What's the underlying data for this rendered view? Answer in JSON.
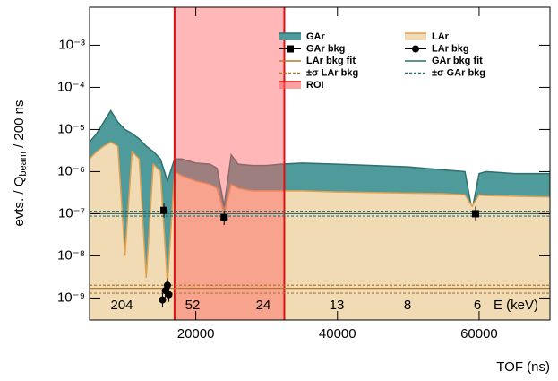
{
  "chart_data": {
    "type": "area",
    "y_label_parts": [
      "evts. / Q",
      "beam",
      " / 200 ns"
    ],
    "x_label": "TOF (ns)",
    "xlim": [
      5000,
      70000
    ],
    "xticks": [
      20000,
      40000,
      60000
    ],
    "ylim": [
      3e-10,
      0.008
    ],
    "log_y": true,
    "yticks": [
      {
        "value": 1e-09,
        "label": "10⁻⁹"
      },
      {
        "value": 1e-08,
        "label": "10⁻⁸"
      },
      {
        "value": 1e-07,
        "label": "10⁻⁷"
      },
      {
        "value": 1e-06,
        "label": "10⁻⁶"
      },
      {
        "value": 1e-05,
        "label": "10⁻⁵"
      },
      {
        "value": 0.0001,
        "label": "10⁻⁴"
      },
      {
        "value": 0.001,
        "label": "10⁻³"
      }
    ],
    "x": [
      5000,
      6000,
      7000,
      8000,
      9000,
      10000,
      11000,
      12000,
      13000,
      14000,
      15000,
      16000,
      17000,
      18000,
      20000,
      22000,
      23000,
      24000,
      25000,
      26000,
      28000,
      30000,
      32000,
      35000,
      40000,
      45000,
      50000,
      55000,
      58000,
      59000,
      60000,
      61000,
      65000,
      70000
    ],
    "series": [
      {
        "name": "GAr",
        "color": "#4f9a9a",
        "line": "#2f6f6f",
        "values": [
          5e-06,
          8e-06,
          1.5e-05,
          2.8e-05,
          1.5e-05,
          1e-05,
          8e-06,
          6e-06,
          4e-06,
          3e-06,
          2e-06,
          6e-07,
          2e-06,
          2e-06,
          1.6e-06,
          1.5e-06,
          1.2e-06,
          1.5e-07,
          2.5e-06,
          1.5e-06,
          1.4e-06,
          1.4e-06,
          1.5e-06,
          1.6e-06,
          1.5e-06,
          1.4e-06,
          1.3e-06,
          1.1e-06,
          1e-06,
          1.2e-07,
          9e-07,
          1e-06,
          9e-07,
          9e-07
        ]
      },
      {
        "name": "LAr",
        "color": "#f0dbb4",
        "line": "#e0a050",
        "values": [
          2e-06,
          3e-06,
          4e-06,
          5e-06,
          4e-06,
          1e-08,
          3e-06,
          2e-06,
          3e-09,
          1.5e-06,
          1e-06,
          2e-09,
          1e-06,
          8e-07,
          6e-07,
          5e-07,
          4e-07,
          1e-07,
          5e-07,
          4e-07,
          3.5e-07,
          3.5e-07,
          3.5e-07,
          3.5e-07,
          3.3e-07,
          3.2e-07,
          3.1e-07,
          3e-07,
          2.8e-07,
          1.5e-07,
          2.8e-07,
          2.7e-07,
          2.6e-07,
          2.5e-07
        ]
      }
    ],
    "markers": [
      {
        "name": "GAr bkg",
        "shape": "square",
        "color": "#000000",
        "x": [
          15500,
          24000,
          59500
        ],
        "values": [
          1.2e-07,
          8e-08,
          1e-07
        ]
      },
      {
        "name": "LAr bkg",
        "shape": "circle",
        "color": "#000000",
        "x": [
          15300,
          15700,
          16000,
          16200
        ],
        "values": [
          9e-10,
          1.5e-09,
          2e-09,
          1.2e-09
        ]
      }
    ],
    "levels": [
      {
        "name": "GAr bkg fit",
        "color": "#2f6f6f",
        "dashed": false,
        "values": [
          1e-07
        ]
      },
      {
        "name": "LAr bkg fit",
        "color": "#b07a30",
        "dashed": false,
        "values": [
          1.7e-09
        ]
      },
      {
        "name": "±σ GAr bkg",
        "color": "#2f6f6f",
        "dashed": true,
        "values": [
          1.15e-07,
          8.8e-08
        ]
      },
      {
        "name": "±σ LAr bkg",
        "color": "#b07a30",
        "dashed": true,
        "values": [
          2e-09,
          1.3e-09
        ]
      }
    ],
    "roi": {
      "name": "ROI",
      "color": "#ff6060",
      "edge": "#dd1111",
      "range": [
        17000,
        32500
      ]
    },
    "energy_labels": [
      "204",
      "52",
      "24",
      "13",
      "8",
      "6",
      "E (keV)"
    ]
  }
}
